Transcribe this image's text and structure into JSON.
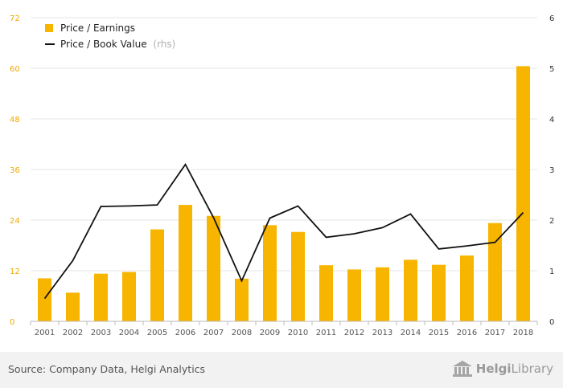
{
  "chart_data": {
    "type": "bar",
    "categories": [
      "2001",
      "2002",
      "2003",
      "2004",
      "2005",
      "2006",
      "2007",
      "2008",
      "2009",
      "2010",
      "2011",
      "2012",
      "2013",
      "2014",
      "2015",
      "2016",
      "2017",
      "2018"
    ],
    "series": [
      {
        "name": "Price / Earnings",
        "type": "bar",
        "axis": "left",
        "color": "#f7b500",
        "values": [
          10.2,
          6.8,
          11.3,
          11.7,
          21.8,
          27.6,
          25.0,
          10.1,
          22.8,
          21.2,
          13.3,
          12.3,
          12.8,
          14.6,
          13.4,
          15.6,
          23.3,
          60.5
        ]
      },
      {
        "name": "Price / Book Value",
        "name_suffix": "(rhs)",
        "type": "line",
        "axis": "right",
        "color": "#111111",
        "values": [
          0.45,
          1.2,
          2.27,
          2.28,
          2.3,
          3.1,
          2.05,
          0.8,
          2.04,
          2.28,
          1.66,
          1.73,
          1.85,
          2.12,
          1.43,
          1.49,
          1.56,
          2.15
        ]
      }
    ],
    "y_left": {
      "ylim": [
        0,
        72
      ],
      "ticks": [
        "0",
        "12",
        "24",
        "36",
        "48",
        "60",
        "72"
      ]
    },
    "y_right": {
      "ylim": [
        0,
        6
      ],
      "ticks": [
        "0",
        "1",
        "2",
        "3",
        "4",
        "5",
        "6"
      ]
    },
    "grid": true,
    "legend": "top-left"
  },
  "footer": {
    "source": "Source: Company Data, Helgi Analytics",
    "logo_bold": "Helgi",
    "logo_light": "Library"
  }
}
